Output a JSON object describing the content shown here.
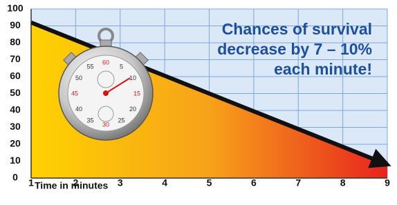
{
  "chart_data": {
    "type": "area",
    "annotation": [
      "Chances of survival",
      "decrease by 7 – 10%",
      "each minute!"
    ],
    "x_label": "Time in minutes",
    "x": [
      1,
      2,
      3,
      4,
      5,
      6,
      7,
      8,
      9
    ],
    "values": [
      92,
      81.5,
      71,
      60.5,
      50,
      39.5,
      29,
      18.5,
      8
    ],
    "colors": [
      "#ffd200",
      "#f7a21a",
      "#e8231e"
    ],
    "line_color": "#111111",
    "xlim": [
      1,
      9
    ],
    "xticks": [
      1,
      2,
      3,
      4,
      5,
      6,
      7,
      8,
      9
    ],
    "ylim": [
      0,
      100
    ],
    "yticks": [
      0,
      10,
      20,
      30,
      40,
      50,
      60,
      70,
      80,
      90,
      100
    ],
    "grid": true
  },
  "stopwatch": {
    "dial_labels": [
      "60",
      "5",
      "10",
      "15",
      "20",
      "25",
      "30",
      "35",
      "40",
      "45",
      "50",
      "55"
    ]
  }
}
